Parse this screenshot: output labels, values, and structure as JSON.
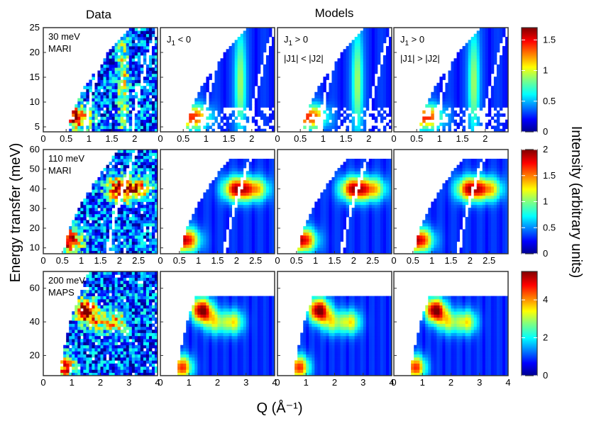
{
  "chart_data": {
    "type": "heatmap",
    "headers": {
      "data": "Data",
      "models": "Models"
    },
    "column_labels": [
      {
        "j_main": "J",
        "j_sub": "1",
        "rel": "< 0",
        "second": null
      },
      {
        "j_main": "J",
        "j_sub": "1",
        "rel": "> 0",
        "second": "|J1| < |J2|"
      },
      {
        "j_main": "J",
        "j_sub": "1",
        "rel": "> 0",
        "second": "|J1| > |J2|"
      }
    ],
    "ylabel": "Energy transfer (meV)",
    "xlabel": "Q (Å⁻¹)",
    "colorbar_label": "Intensity (arbitrary units)",
    "rows": [
      {
        "name": "row-30meV",
        "label_line1": "30 meV",
        "label_line2": "MARI",
        "xlim": [
          0,
          2.5
        ],
        "xticks": [
          0,
          0.5,
          1,
          1.5,
          2
        ],
        "ylim": [
          4,
          25
        ],
        "yticks": [
          5,
          10,
          15,
          20,
          25
        ],
        "colorbar_range": [
          0,
          1.7
        ],
        "colorbar_ticks": [
          0,
          0.5,
          1,
          1.5
        ],
        "qmin_at_emin": 0.55,
        "qmin_at_emax": 1.9,
        "arcs_q_at_emin": [
          0.92,
          1.95
        ],
        "arc_curvature_q": 0.55,
        "emax_flat": null,
        "features": [
          {
            "q": 0.7,
            "e": 7,
            "amp": 1.2
          },
          {
            "q": 1.75,
            "e": 14,
            "amp": 0.7,
            "vertical": true
          }
        ]
      },
      {
        "name": "row-110meV",
        "label_line1": "110 meV",
        "label_line2": "MARI",
        "xlim": [
          0,
          3.0
        ],
        "xticks": [
          0,
          0.5,
          1,
          1.5,
          2,
          2.5
        ],
        "ylim": [
          7,
          60
        ],
        "yticks": [
          10,
          20,
          30,
          40,
          50,
          60
        ],
        "colorbar_range": [
          0,
          2
        ],
        "colorbar_ticks": [
          0,
          0.5,
          1,
          1.5,
          2
        ],
        "qmin_at_emin": 0.55,
        "qmin_at_emax": 2.0,
        "arcs_q_at_emin": [
          1.7
        ],
        "arc_curvature_q": 0.75,
        "emax_flat": 55,
        "features": [
          {
            "q": 0.65,
            "e": 14,
            "amp": 1.6
          },
          {
            "q": 2.0,
            "e": 40,
            "amp": 1.5
          },
          {
            "q": 2.5,
            "e": 40,
            "amp": 1.0
          }
        ]
      },
      {
        "name": "row-200meV",
        "label_line1": "200 meV",
        "label_line2": "MAPS",
        "xlim": [
          0,
          4.0
        ],
        "xticks": [
          0,
          1,
          2,
          3,
          4
        ],
        "ylim": [
          8,
          70
        ],
        "yticks": [
          20,
          40,
          60
        ],
        "colorbar_range": [
          0,
          5.5
        ],
        "colorbar_ticks": [
          0,
          2,
          4
        ],
        "qmin_at_emin": 0.6,
        "qmin_at_emax": 1.6,
        "arcs_q_at_emin": [],
        "arc_curvature_q": 0,
        "emax_flat": 55,
        "features": [
          {
            "q": 1.45,
            "e": 47,
            "amp": 4.8
          },
          {
            "q": 0.75,
            "e": 13,
            "amp": 3.8
          },
          {
            "q": 2.55,
            "e": 40,
            "amp": 2.6
          },
          {
            "q": 1.9,
            "e": 40,
            "amp": 2.2
          }
        ]
      }
    ]
  }
}
